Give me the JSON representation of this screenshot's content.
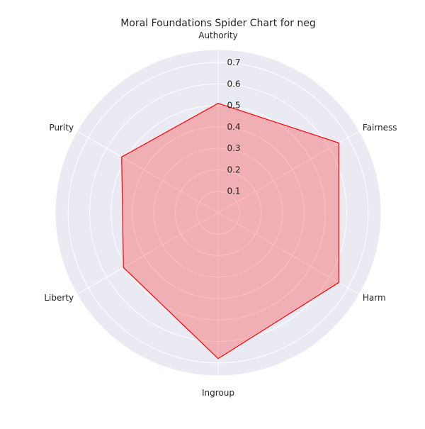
{
  "chart_data": {
    "type": "radar",
    "title": "Moral Foundations Spider Chart for neg",
    "categories": [
      "Authority",
      "Fairness",
      "Harm",
      "Ingroup",
      "Liberty",
      "Purity"
    ],
    "series": [
      {
        "values": [
          0.51,
          0.65,
          0.65,
          0.68,
          0.51,
          0.52
        ]
      }
    ],
    "rlim": [
      0,
      0.76
    ],
    "rticks": [
      "0.1",
      "0.2",
      "0.3",
      "0.4",
      "0.5",
      "0.6",
      "0.7"
    ],
    "grid": true,
    "colors": {
      "line": "#ff0000",
      "fill": "#ff0000",
      "background": "#eaeaf2",
      "grid": "#ffffff"
    }
  }
}
